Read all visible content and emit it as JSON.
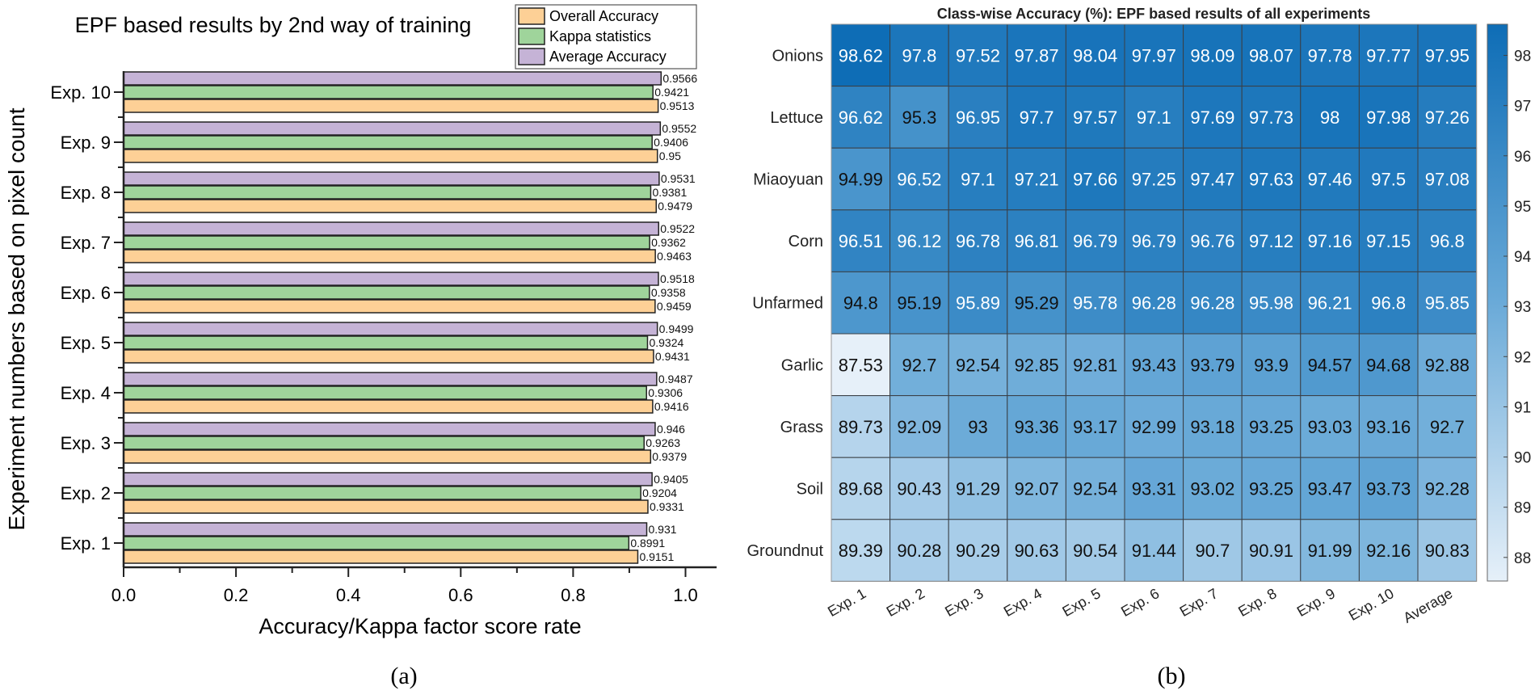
{
  "chart_data": [
    {
      "type": "bar",
      "orientation": "horizontal",
      "title": "EPF based results by 2nd way of training",
      "xlabel": "Accuracy/Kappa factor score rate",
      "ylabel": "Experiment numbers based on pixel count",
      "panel_label": "(a)",
      "xlim": [
        0,
        1.05
      ],
      "xticks": [
        "0.0",
        "0.2",
        "0.4",
        "0.6",
        "0.8",
        "1.0"
      ],
      "categories": [
        "Exp. 1",
        "Exp. 2",
        "Exp. 3",
        "Exp. 4",
        "Exp. 5",
        "Exp. 6",
        "Exp. 7",
        "Exp. 8",
        "Exp. 9",
        "Exp. 10"
      ],
      "legend_position": "top-right",
      "series": [
        {
          "name": "Overall Accuracy",
          "color": "#fdd096",
          "values": [
            0.9151,
            0.9331,
            0.9379,
            0.9416,
            0.9431,
            0.9459,
            0.9463,
            0.9479,
            0.95,
            0.9513
          ]
        },
        {
          "name": "Kappa statistics",
          "color": "#9fd49b",
          "values": [
            0.8991,
            0.9204,
            0.9263,
            0.9306,
            0.9324,
            0.9358,
            0.9362,
            0.9381,
            0.9406,
            0.9421
          ]
        },
        {
          "name": "Average Accuracy",
          "color": "#c5b3d6",
          "values": [
            0.931,
            0.9405,
            0.946,
            0.9487,
            0.9499,
            0.9518,
            0.9522,
            0.9531,
            0.9552,
            0.9566
          ]
        }
      ]
    },
    {
      "type": "heatmap",
      "title": "Class-wise Accuracy (%): EPF based results of all experiments",
      "panel_label": "(b)",
      "columns": [
        "Exp. 1",
        "Exp. 2",
        "Exp. 3",
        "Exp. 4",
        "Exp. 5",
        "Exp. 6",
        "Exp. 7",
        "Exp. 8",
        "Exp. 9",
        "Exp. 10",
        "Average"
      ],
      "rows": [
        "Onions",
        "Lettuce",
        "Miaoyuan",
        "Corn",
        "Unfarmed",
        "Garlic",
        "Grass",
        "Soil",
        "Groundnut"
      ],
      "values": [
        [
          98.62,
          97.8,
          97.52,
          97.87,
          98.04,
          97.97,
          98.09,
          98.07,
          97.78,
          97.77,
          97.95
        ],
        [
          96.62,
          95.3,
          96.95,
          97.7,
          97.57,
          97.1,
          97.69,
          97.73,
          98,
          97.98,
          97.26
        ],
        [
          94.99,
          96.52,
          97.1,
          97.21,
          97.66,
          97.25,
          97.47,
          97.63,
          97.46,
          97.5,
          97.08
        ],
        [
          96.51,
          96.12,
          96.78,
          96.81,
          96.79,
          96.79,
          96.76,
          97.12,
          97.16,
          97.15,
          96.8
        ],
        [
          94.8,
          95.19,
          95.89,
          95.29,
          95.78,
          96.28,
          96.28,
          95.98,
          96.21,
          96.8,
          95.85
        ],
        [
          87.53,
          92.7,
          92.54,
          92.85,
          92.81,
          93.43,
          93.79,
          93.9,
          94.57,
          94.68,
          92.88
        ],
        [
          89.73,
          92.09,
          93,
          93.36,
          93.17,
          92.99,
          93.18,
          93.25,
          93.03,
          93.16,
          92.7
        ],
        [
          89.68,
          90.43,
          91.29,
          92.07,
          92.54,
          93.31,
          93.02,
          93.25,
          93.47,
          93.73,
          92.28
        ],
        [
          89.39,
          90.28,
          90.29,
          90.63,
          90.54,
          91.44,
          90.7,
          90.91,
          91.99,
          92.16,
          90.83
        ]
      ],
      "colorbar": {
        "range": [
          87.53,
          98.62
        ],
        "ticks": [
          "88",
          "89",
          "90",
          "91",
          "92",
          "93",
          "94",
          "95",
          "96",
          "97",
          "98"
        ],
        "colors": [
          "#e6f0f9",
          "#6aaad8",
          "#0e6db6"
        ]
      }
    }
  ]
}
